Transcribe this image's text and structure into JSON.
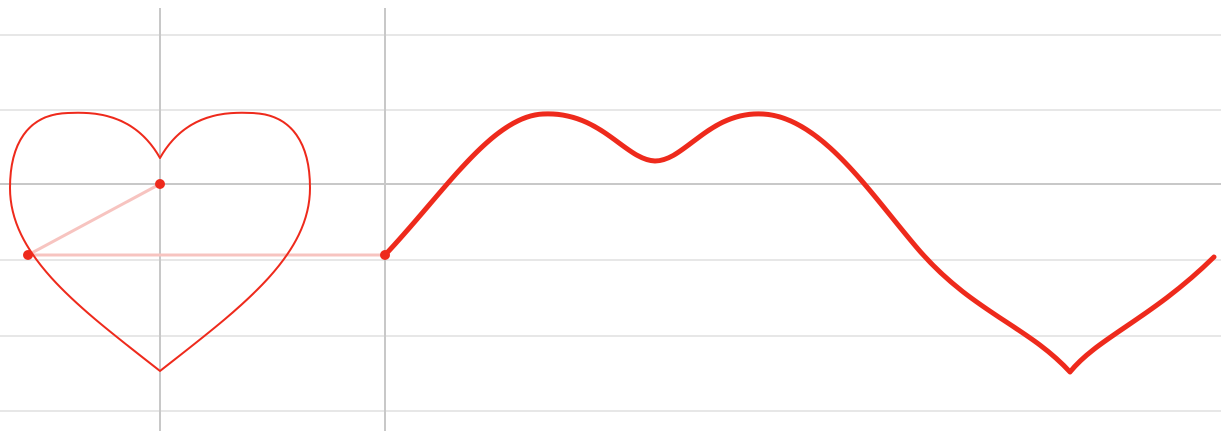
{
  "colors": {
    "background": "#ffffff",
    "grid_line": "#e7e7e7",
    "axis_line": "#c8c8c8",
    "curve": "#ee2a1c",
    "connector": "#f7c4c0",
    "point": "#ee2a1c"
  },
  "icons": {
    "heart": "heart-curve-icon",
    "wave": "projection-wave-icon"
  }
}
